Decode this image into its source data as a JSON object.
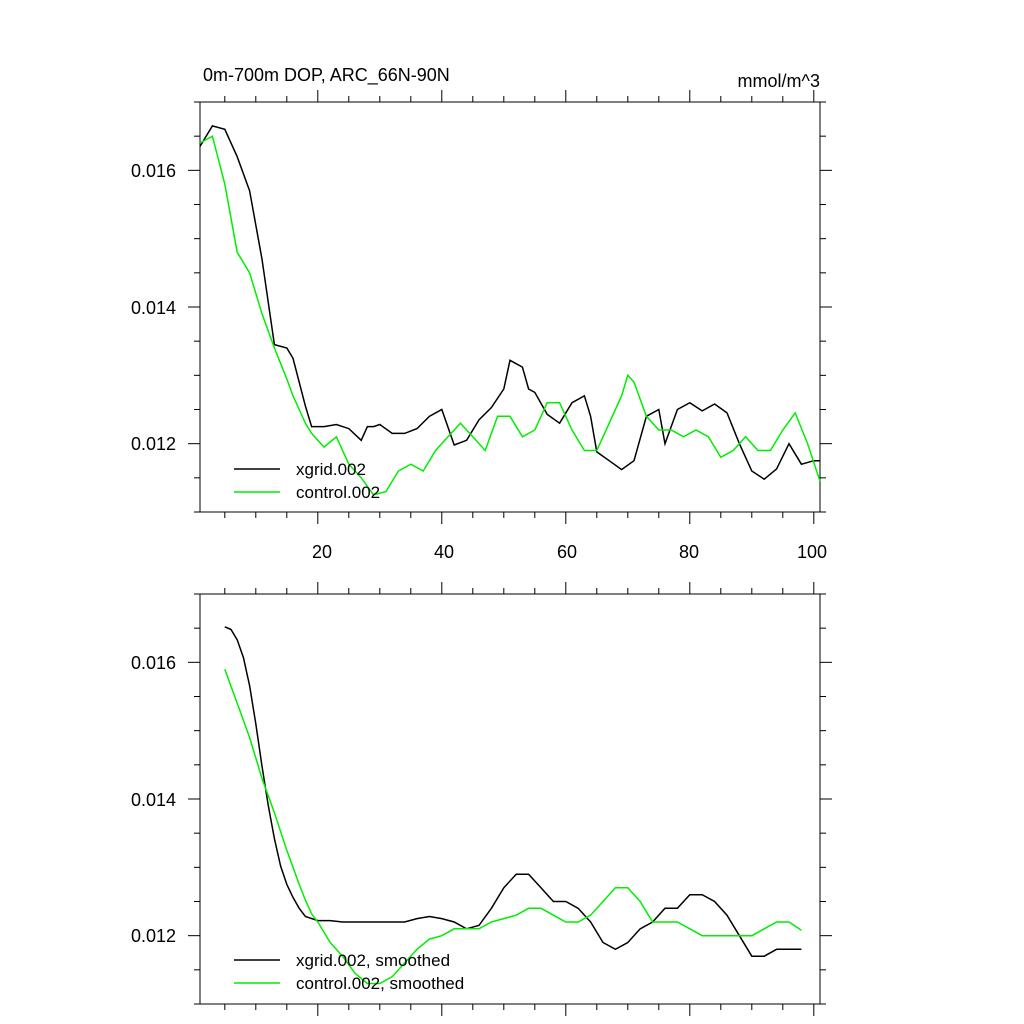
{
  "colors": {
    "xgrid": "#000000",
    "control": "#00ee00",
    "axis": "#000000",
    "background": "#ffffff"
  },
  "chart_data": [
    {
      "type": "line",
      "title": "0m-700m DOP, ARC_66N-90N",
      "units": "mmol/m^3",
      "xlim": [
        1,
        101
      ],
      "ylim": [
        0.011,
        0.017
      ],
      "xticks": [
        20,
        40,
        60,
        80,
        100
      ],
      "xticklabels": [
        "20",
        "40",
        "60",
        "80",
        "100"
      ],
      "yticks": [
        0.012,
        0.014,
        0.016
      ],
      "yticklabels": [
        "0.012",
        "0.014",
        "0.016"
      ],
      "legend": "bottom-left",
      "series": [
        {
          "name": "xgrid.002",
          "x": [
            1,
            3,
            5,
            7,
            9,
            11,
            13,
            15,
            16,
            17,
            18,
            19,
            21,
            23,
            25,
            27,
            28,
            29,
            30,
            32,
            34,
            36,
            38,
            40,
            42,
            44,
            46,
            48,
            50,
            51,
            53,
            54,
            55,
            57,
            59,
            61,
            63,
            64,
            65,
            67,
            69,
            71,
            73,
            75,
            76,
            78,
            80,
            82,
            84,
            86,
            88,
            90,
            92,
            94,
            96,
            98,
            100,
            101
          ],
          "y": [
            0.01635,
            0.01665,
            0.0166,
            0.0162,
            0.0157,
            0.0147,
            0.01345,
            0.0134,
            0.01325,
            0.0129,
            0.01255,
            0.01225,
            0.01225,
            0.01228,
            0.01222,
            0.01205,
            0.01225,
            0.01225,
            0.01228,
            0.01215,
            0.01215,
            0.01222,
            0.0124,
            0.0125,
            0.01198,
            0.01205,
            0.01235,
            0.01253,
            0.0128,
            0.01322,
            0.01312,
            0.0128,
            0.01275,
            0.01243,
            0.0123,
            0.0126,
            0.0127,
            0.0124,
            0.01188,
            0.01175,
            0.01162,
            0.01175,
            0.0124,
            0.0125,
            0.012,
            0.0125,
            0.0126,
            0.01248,
            0.01258,
            0.01245,
            0.012,
            0.0116,
            0.01148,
            0.01163,
            0.012,
            0.0117,
            0.01175,
            0.01175
          ]
        },
        {
          "name": "control.002",
          "x": [
            1,
            3,
            5,
            7,
            9,
            11,
            13,
            15,
            16,
            17,
            18,
            19,
            21,
            23,
            25,
            27,
            29,
            31,
            33,
            35,
            37,
            39,
            41,
            43,
            45,
            47,
            49,
            51,
            53,
            55,
            57,
            59,
            61,
            63,
            65,
            67,
            69,
            70,
            71,
            73,
            75,
            77,
            79,
            81,
            83,
            85,
            87,
            89,
            91,
            93,
            95,
            97,
            99,
            101
          ],
          "y": [
            0.0164,
            0.0165,
            0.0158,
            0.0148,
            0.0145,
            0.0139,
            0.0134,
            0.01295,
            0.0127,
            0.0125,
            0.0123,
            0.01215,
            0.01195,
            0.0121,
            0.0117,
            0.0115,
            0.01125,
            0.0113,
            0.0116,
            0.0117,
            0.0116,
            0.0119,
            0.0121,
            0.0123,
            0.0121,
            0.0119,
            0.0124,
            0.0124,
            0.0121,
            0.0122,
            0.0126,
            0.0126,
            0.0122,
            0.0119,
            0.0119,
            0.0123,
            0.0127,
            0.013,
            0.0129,
            0.0124,
            0.0122,
            0.0122,
            0.0121,
            0.0122,
            0.0121,
            0.0118,
            0.0119,
            0.0121,
            0.0119,
            0.0119,
            0.0122,
            0.01245,
            0.012,
            0.01145
          ]
        }
      ]
    },
    {
      "type": "line",
      "title": "",
      "xlim": [
        1,
        101
      ],
      "ylim": [
        0.011,
        0.017
      ],
      "xticks": [
        20,
        40,
        60,
        80,
        100
      ],
      "yticks": [
        0.012,
        0.014,
        0.016
      ],
      "yticklabels": [
        "0.012",
        "0.014",
        "0.016"
      ],
      "legend": "bottom-left",
      "series": [
        {
          "name": "xgrid.002, smoothed",
          "x": [
            5,
            6,
            7,
            8,
            9,
            10,
            11,
            12,
            13,
            14,
            15,
            16,
            17,
            18,
            19,
            20,
            22,
            24,
            26,
            28,
            30,
            32,
            34,
            36,
            38,
            40,
            42,
            44,
            46,
            48,
            50,
            52,
            54,
            56,
            58,
            60,
            62,
            64,
            66,
            68,
            70,
            72,
            74,
            76,
            78,
            80,
            82,
            84,
            86,
            88,
            90,
            92,
            94,
            96,
            98
          ],
          "y": [
            0.01652,
            0.01648,
            0.01633,
            0.01607,
            0.01566,
            0.0151,
            0.01448,
            0.01391,
            0.01342,
            0.01302,
            0.01275,
            0.01256,
            0.0124,
            0.01228,
            0.01225,
            0.01222,
            0.01222,
            0.0122,
            0.0122,
            0.0122,
            0.0122,
            0.0122,
            0.0122,
            0.01225,
            0.01228,
            0.01225,
            0.0122,
            0.0121,
            0.01215,
            0.0124,
            0.0127,
            0.0129,
            0.0129,
            0.0127,
            0.0125,
            0.0125,
            0.0124,
            0.0122,
            0.0119,
            0.0118,
            0.0119,
            0.0121,
            0.0122,
            0.0124,
            0.0124,
            0.0126,
            0.0126,
            0.0125,
            0.0123,
            0.012,
            0.0117,
            0.0117,
            0.0118,
            0.0118,
            0.0118
          ]
        },
        {
          "name": "control.002, smoothed",
          "x": [
            5,
            7,
            9,
            11,
            13,
            15,
            16,
            17,
            18,
            19,
            20,
            22,
            24,
            26,
            28,
            30,
            32,
            34,
            36,
            38,
            40,
            42,
            44,
            46,
            48,
            50,
            52,
            54,
            56,
            58,
            60,
            62,
            64,
            66,
            68,
            70,
            72,
            74,
            76,
            78,
            80,
            82,
            84,
            86,
            88,
            90,
            92,
            94,
            96,
            98
          ],
          "y": [
            0.0159,
            0.0154,
            0.0149,
            0.0143,
            0.0138,
            0.01325,
            0.013,
            0.01275,
            0.01252,
            0.01232,
            0.0122,
            0.0119,
            0.0117,
            0.01145,
            0.0113,
            0.0113,
            0.0114,
            0.0116,
            0.0118,
            0.01195,
            0.012,
            0.0121,
            0.0121,
            0.0121,
            0.0122,
            0.01225,
            0.0123,
            0.0124,
            0.0124,
            0.0123,
            0.0122,
            0.0122,
            0.0123,
            0.0125,
            0.0127,
            0.0127,
            0.0125,
            0.0122,
            0.0122,
            0.0122,
            0.0121,
            0.012,
            0.012,
            0.012,
            0.012,
            0.012,
            0.0121,
            0.0122,
            0.0122,
            0.01208
          ]
        }
      ]
    }
  ]
}
